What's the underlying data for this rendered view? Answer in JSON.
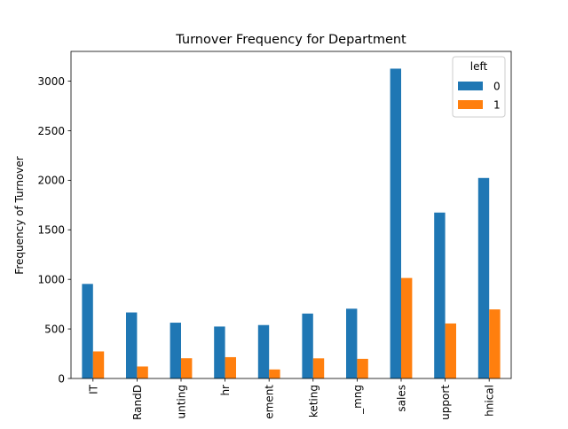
{
  "chart_data": {
    "type": "bar",
    "title": "Turnover Frequency for Department",
    "xlabel": "",
    "ylabel": "Frequency of Turnover",
    "ylim": [
      0,
      3300
    ],
    "yticks": [
      0,
      500,
      1000,
      1500,
      2000,
      2500,
      3000
    ],
    "grid": false,
    "categories": [
      "IT",
      "RandD",
      "unting",
      "hr",
      "ement",
      "keting",
      "_mng",
      "sales",
      "upport",
      "hnical"
    ],
    "legend": {
      "title": "left",
      "placement": "top-right"
    },
    "series": [
      {
        "name": "0",
        "color": "#1f77b4",
        "values": [
          954,
          666,
          563,
          524,
          539,
          655,
          704,
          3126,
          1674,
          2023
        ]
      },
      {
        "name": "1",
        "color": "#ff7f0e",
        "values": [
          273,
          121,
          204,
          215,
          91,
          203,
          198,
          1014,
          555,
          697
        ]
      }
    ]
  }
}
